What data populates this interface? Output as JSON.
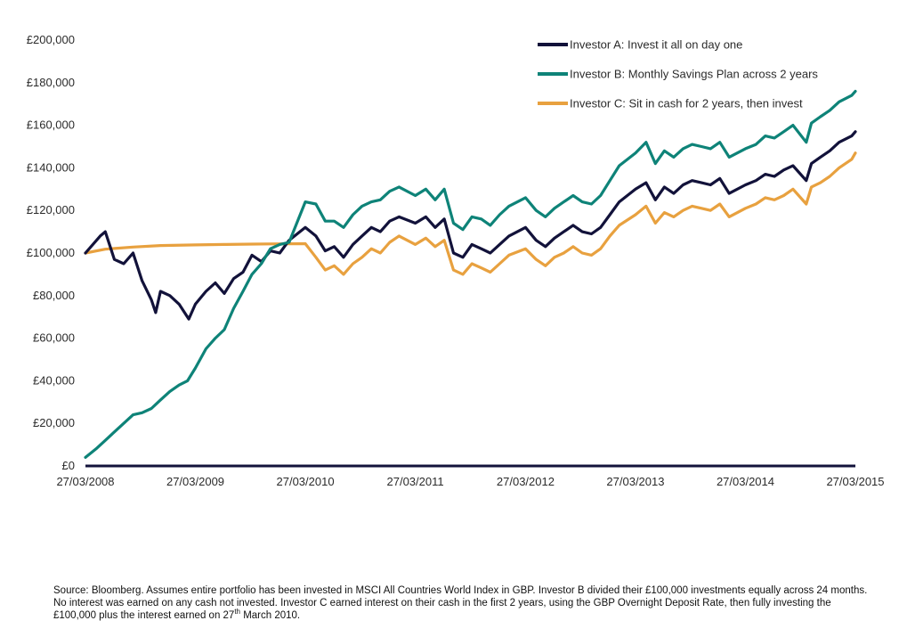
{
  "chart_data": {
    "type": "line",
    "title": "",
    "xlabel": "",
    "ylabel": "",
    "x_range": [
      "27/03/2008",
      "27/03/2015"
    ],
    "x_ticks": [
      "27/03/2008",
      "27/03/2009",
      "27/03/2010",
      "27/03/2011",
      "27/03/2012",
      "27/03/2013",
      "27/03/2014",
      "27/03/2015"
    ],
    "ylim": [
      0,
      200000
    ],
    "y_ticks": [
      0,
      20000,
      40000,
      60000,
      80000,
      100000,
      120000,
      140000,
      160000,
      180000,
      200000
    ],
    "y_tick_labels": [
      "£0",
      "£20,000",
      "£40,000",
      "£60,000",
      "£80,000",
      "£100,000",
      "£120,000",
      "£140,000",
      "£160,000",
      "£180,000",
      "£200,000"
    ],
    "grid": false,
    "legend_position": "top-right",
    "series": [
      {
        "name": "Investor A: Invest it all on day one",
        "color": "#12123a",
        "points": [
          [
            "27/03/2008",
            100000
          ],
          [
            "15/05/2008",
            108000
          ],
          [
            "01/06/2008",
            110000
          ],
          [
            "01/07/2008",
            97000
          ],
          [
            "01/08/2008",
            95000
          ],
          [
            "01/09/2008",
            100000
          ],
          [
            "01/10/2008",
            87000
          ],
          [
            "01/11/2008",
            78000
          ],
          [
            "15/11/2008",
            72000
          ],
          [
            "01/12/2008",
            82000
          ],
          [
            "01/01/2009",
            80000
          ],
          [
            "01/02/2009",
            76000
          ],
          [
            "05/03/2009",
            69000
          ],
          [
            "27/03/2009",
            76000
          ],
          [
            "01/05/2009",
            82000
          ],
          [
            "01/06/2009",
            86000
          ],
          [
            "01/07/2009",
            81000
          ],
          [
            "01/08/2009",
            88000
          ],
          [
            "01/09/2009",
            91000
          ],
          [
            "01/10/2009",
            99000
          ],
          [
            "01/11/2009",
            96000
          ],
          [
            "01/12/2009",
            101000
          ],
          [
            "01/01/2010",
            100000
          ],
          [
            "01/02/2010",
            106000
          ],
          [
            "27/03/2010",
            112000
          ],
          [
            "01/05/2010",
            108000
          ],
          [
            "01/06/2010",
            101000
          ],
          [
            "01/07/2010",
            103000
          ],
          [
            "01/08/2010",
            98000
          ],
          [
            "01/09/2010",
            104000
          ],
          [
            "01/10/2010",
            108000
          ],
          [
            "01/11/2010",
            112000
          ],
          [
            "01/12/2010",
            110000
          ],
          [
            "01/01/2011",
            115000
          ],
          [
            "01/02/2011",
            117000
          ],
          [
            "27/03/2011",
            114000
          ],
          [
            "01/05/2011",
            117000
          ],
          [
            "01/06/2011",
            112000
          ],
          [
            "01/07/2011",
            116000
          ],
          [
            "01/08/2011",
            100000
          ],
          [
            "01/09/2011",
            98000
          ],
          [
            "01/10/2011",
            104000
          ],
          [
            "01/11/2011",
            102000
          ],
          [
            "01/12/2011",
            100000
          ],
          [
            "01/01/2012",
            104000
          ],
          [
            "01/02/2012",
            108000
          ],
          [
            "27/03/2012",
            112000
          ],
          [
            "01/05/2012",
            106000
          ],
          [
            "01/06/2012",
            103000
          ],
          [
            "01/07/2012",
            107000
          ],
          [
            "01/08/2012",
            110000
          ],
          [
            "01/09/2012",
            113000
          ],
          [
            "01/10/2012",
            110000
          ],
          [
            "01/11/2012",
            109000
          ],
          [
            "01/12/2012",
            112000
          ],
          [
            "01/01/2013",
            118000
          ],
          [
            "01/02/2013",
            124000
          ],
          [
            "27/03/2013",
            130000
          ],
          [
            "01/05/2013",
            133000
          ],
          [
            "01/06/2013",
            125000
          ],
          [
            "01/07/2013",
            131000
          ],
          [
            "01/08/2013",
            128000
          ],
          [
            "01/09/2013",
            132000
          ],
          [
            "01/10/2013",
            134000
          ],
          [
            "01/11/2013",
            133000
          ],
          [
            "01/12/2013",
            132000
          ],
          [
            "01/01/2014",
            135000
          ],
          [
            "01/02/2014",
            128000
          ],
          [
            "27/03/2014",
            132000
          ],
          [
            "01/05/2014",
            134000
          ],
          [
            "01/06/2014",
            137000
          ],
          [
            "01/07/2014",
            136000
          ],
          [
            "01/08/2014",
            139000
          ],
          [
            "01/09/2014",
            141000
          ],
          [
            "15/10/2014",
            134000
          ],
          [
            "01/11/2014",
            142000
          ],
          [
            "01/12/2014",
            145000
          ],
          [
            "01/01/2015",
            148000
          ],
          [
            "01/02/2015",
            152000
          ],
          [
            "15/03/2015",
            155000
          ],
          [
            "27/03/2015",
            157000
          ]
        ]
      },
      {
        "name": "Investor B: Monthly Savings Plan across 2 years",
        "color": "#0e8378",
        "points": [
          [
            "27/03/2008",
            4000
          ],
          [
            "01/05/2008",
            8000
          ],
          [
            "01/06/2008",
            12000
          ],
          [
            "01/07/2008",
            16000
          ],
          [
            "01/08/2008",
            20000
          ],
          [
            "01/09/2008",
            24000
          ],
          [
            "01/10/2008",
            25000
          ],
          [
            "01/11/2008",
            27000
          ],
          [
            "01/12/2008",
            31000
          ],
          [
            "01/01/2009",
            35000
          ],
          [
            "01/02/2009",
            38000
          ],
          [
            "01/03/2009",
            40000
          ],
          [
            "27/03/2009",
            46000
          ],
          [
            "01/05/2009",
            55000
          ],
          [
            "01/06/2009",
            60000
          ],
          [
            "01/07/2009",
            64000
          ],
          [
            "01/08/2009",
            74000
          ],
          [
            "01/09/2009",
            82000
          ],
          [
            "01/10/2009",
            90000
          ],
          [
            "01/11/2009",
            95000
          ],
          [
            "01/12/2009",
            102000
          ],
          [
            "01/01/2010",
            104000
          ],
          [
            "01/02/2010",
            105000
          ],
          [
            "27/03/2010",
            124000
          ],
          [
            "01/05/2010",
            123000
          ],
          [
            "01/06/2010",
            115000
          ],
          [
            "01/07/2010",
            115000
          ],
          [
            "01/08/2010",
            112000
          ],
          [
            "01/09/2010",
            118000
          ],
          [
            "01/10/2010",
            122000
          ],
          [
            "01/11/2010",
            124000
          ],
          [
            "01/12/2010",
            125000
          ],
          [
            "01/01/2011",
            129000
          ],
          [
            "01/02/2011",
            131000
          ],
          [
            "27/03/2011",
            127000
          ],
          [
            "01/05/2011",
            130000
          ],
          [
            "01/06/2011",
            125000
          ],
          [
            "01/07/2011",
            130000
          ],
          [
            "01/08/2011",
            114000
          ],
          [
            "01/09/2011",
            111000
          ],
          [
            "01/10/2011",
            117000
          ],
          [
            "01/11/2011",
            116000
          ],
          [
            "01/12/2011",
            113000
          ],
          [
            "01/01/2012",
            118000
          ],
          [
            "01/02/2012",
            122000
          ],
          [
            "27/03/2012",
            126000
          ],
          [
            "01/05/2012",
            120000
          ],
          [
            "01/06/2012",
            117000
          ],
          [
            "01/07/2012",
            121000
          ],
          [
            "01/08/2012",
            124000
          ],
          [
            "01/09/2012",
            127000
          ],
          [
            "01/10/2012",
            124000
          ],
          [
            "01/11/2012",
            123000
          ],
          [
            "01/12/2012",
            127000
          ],
          [
            "01/01/2013",
            134000
          ],
          [
            "01/02/2013",
            141000
          ],
          [
            "27/03/2013",
            147000
          ],
          [
            "01/05/2013",
            152000
          ],
          [
            "01/06/2013",
            142000
          ],
          [
            "01/07/2013",
            148000
          ],
          [
            "01/08/2013",
            145000
          ],
          [
            "01/09/2013",
            149000
          ],
          [
            "01/10/2013",
            151000
          ],
          [
            "01/11/2013",
            150000
          ],
          [
            "01/12/2013",
            149000
          ],
          [
            "01/01/2014",
            152000
          ],
          [
            "01/02/2014",
            145000
          ],
          [
            "27/03/2014",
            149000
          ],
          [
            "01/05/2014",
            151000
          ],
          [
            "01/06/2014",
            155000
          ],
          [
            "01/07/2014",
            154000
          ],
          [
            "01/08/2014",
            157000
          ],
          [
            "01/09/2014",
            160000
          ],
          [
            "15/10/2014",
            152000
          ],
          [
            "01/11/2014",
            161000
          ],
          [
            "01/12/2014",
            164000
          ],
          [
            "01/01/2015",
            167000
          ],
          [
            "01/02/2015",
            171000
          ],
          [
            "15/03/2015",
            174000
          ],
          [
            "27/03/2015",
            176000
          ]
        ]
      },
      {
        "name": "Investor C: Sit in cash for 2 years, then invest",
        "color": "#e8a13f",
        "points": [
          [
            "27/03/2008",
            100000
          ],
          [
            "01/06/2008",
            101800
          ],
          [
            "01/09/2008",
            102800
          ],
          [
            "01/12/2008",
            103500
          ],
          [
            "27/03/2009",
            103800
          ],
          [
            "01/07/2009",
            104000
          ],
          [
            "01/10/2009",
            104200
          ],
          [
            "01/01/2010",
            104300
          ],
          [
            "27/03/2010",
            104400
          ],
          [
            "01/05/2010",
            98000
          ],
          [
            "01/06/2010",
            92000
          ],
          [
            "01/07/2010",
            94000
          ],
          [
            "01/08/2010",
            90000
          ],
          [
            "01/09/2010",
            95000
          ],
          [
            "01/10/2010",
            98000
          ],
          [
            "01/11/2010",
            102000
          ],
          [
            "01/12/2010",
            100000
          ],
          [
            "01/01/2011",
            105000
          ],
          [
            "01/02/2011",
            108000
          ],
          [
            "27/03/2011",
            104000
          ],
          [
            "01/05/2011",
            107000
          ],
          [
            "01/06/2011",
            103000
          ],
          [
            "01/07/2011",
            106000
          ],
          [
            "01/08/2011",
            92000
          ],
          [
            "01/09/2011",
            90000
          ],
          [
            "01/10/2011",
            95000
          ],
          [
            "01/11/2011",
            93000
          ],
          [
            "01/12/2011",
            91000
          ],
          [
            "01/01/2012",
            95000
          ],
          [
            "01/02/2012",
            99000
          ],
          [
            "27/03/2012",
            102000
          ],
          [
            "01/05/2012",
            97000
          ],
          [
            "01/06/2012",
            94000
          ],
          [
            "01/07/2012",
            98000
          ],
          [
            "01/08/2012",
            100000
          ],
          [
            "01/09/2012",
            103000
          ],
          [
            "01/10/2012",
            100000
          ],
          [
            "01/11/2012",
            99000
          ],
          [
            "01/12/2012",
            102000
          ],
          [
            "01/01/2013",
            108000
          ],
          [
            "01/02/2013",
            113000
          ],
          [
            "27/03/2013",
            118000
          ],
          [
            "01/05/2013",
            122000
          ],
          [
            "01/06/2013",
            114000
          ],
          [
            "01/07/2013",
            119000
          ],
          [
            "01/08/2013",
            117000
          ],
          [
            "01/09/2013",
            120000
          ],
          [
            "01/10/2013",
            122000
          ],
          [
            "01/11/2013",
            121000
          ],
          [
            "01/12/2013",
            120000
          ],
          [
            "01/01/2014",
            123000
          ],
          [
            "01/02/2014",
            117000
          ],
          [
            "27/03/2014",
            121000
          ],
          [
            "01/05/2014",
            123000
          ],
          [
            "01/06/2014",
            126000
          ],
          [
            "01/07/2014",
            125000
          ],
          [
            "01/08/2014",
            127000
          ],
          [
            "01/09/2014",
            130000
          ],
          [
            "15/10/2014",
            123000
          ],
          [
            "01/11/2014",
            131000
          ],
          [
            "01/12/2014",
            133000
          ],
          [
            "01/01/2015",
            136000
          ],
          [
            "01/02/2015",
            140000
          ],
          [
            "15/03/2015",
            144000
          ],
          [
            "27/03/2015",
            147000
          ]
        ]
      }
    ]
  },
  "footnote": {
    "part1": "Source: Bloomberg. Assumes entire portfolio has been invested in MSCI All Countries World Index in GBP. Investor B divided their £100,000 investments equally across 24 months. No interest was earned on any cash not invested. Investor C earned interest on their cash in the first 2 years, using the GBP Overnight Deposit Rate, then fully investing the £100,000 plus the interest earned on 27",
    "superscript": "th",
    "part2": " March 2010."
  }
}
